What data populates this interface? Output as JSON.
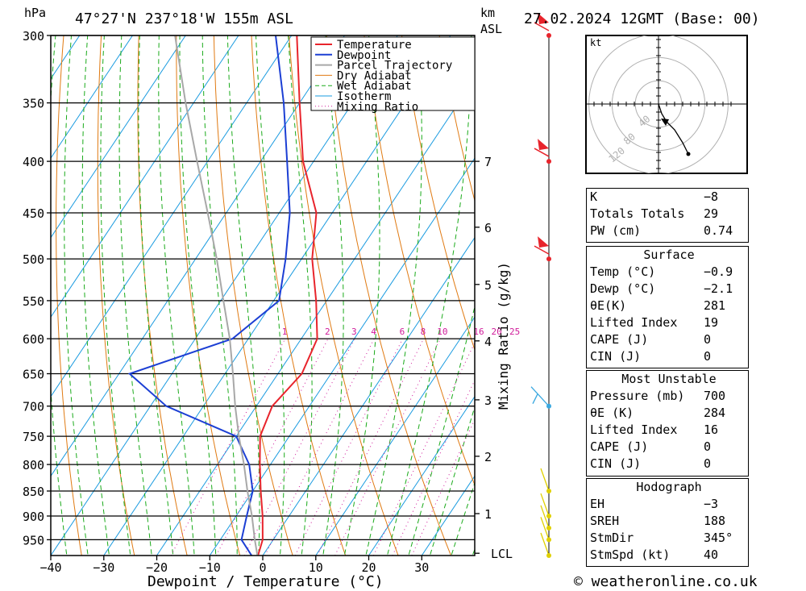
{
  "header": {
    "units_left": "hPa",
    "location": "47°27'N  237°18'W  155m  ASL",
    "units_km": "km",
    "units_asl": "ASL",
    "datetime": "27.02.2024  12GMT  (Base: 00)"
  },
  "chart_data": {
    "type": "line",
    "title": "47°27'N  237°18'W  155m  ASL",
    "xlabel": "Dewpoint / Temperature (°C)",
    "ylabel": "hPa",
    "y_scale": "log-pressure",
    "ylim": [
      985,
      300
    ],
    "xlim": [
      -40,
      40
    ],
    "skew": "isotherms skewed to the right",
    "x_ticks": [
      "−40",
      "−30",
      "−20",
      "−10",
      "0",
      "10",
      "20",
      "30"
    ],
    "x_tick_values": [
      -40,
      -30,
      -20,
      -10,
      0,
      10,
      20,
      30
    ],
    "pressure_ticks": [
      300,
      350,
      400,
      450,
      500,
      550,
      600,
      650,
      700,
      750,
      800,
      850,
      900,
      950
    ],
    "km_ticks": [
      {
        "label": "7",
        "p": 400
      },
      {
        "label": "6",
        "p": 465
      },
      {
        "label": "5",
        "p": 530
      },
      {
        "label": "4",
        "p": 603
      },
      {
        "label": "3",
        "p": 690
      },
      {
        "label": "2",
        "p": 785
      },
      {
        "label": "1",
        "p": 895
      },
      {
        "label": "LCL",
        "p": 980
      }
    ],
    "mixing_ratio_label": "Mixing Ratio (g/kg)",
    "mixing_ratio_values": [
      "1",
      "2",
      "3",
      "4",
      "6",
      "8",
      "10",
      "16",
      "20",
      "25"
    ],
    "mixing_ratio_numbers": [
      1,
      2,
      3,
      4,
      6,
      8,
      10,
      16,
      20,
      25
    ],
    "grid": true,
    "legend_position": "top-right",
    "legend": [
      "Temperature",
      "Dewpoint",
      "Parcel Trajectory",
      "Dry Adiabat",
      "Wet Adiabat",
      "Isotherm",
      "Mixing Ratio"
    ],
    "series": [
      {
        "name": "Temperature",
        "color": "#e8242c",
        "points": [
          [
            985,
            -0.9
          ],
          [
            950,
            -2
          ],
          [
            900,
            -5
          ],
          [
            850,
            -8.5
          ],
          [
            800,
            -12
          ],
          [
            750,
            -15.5
          ],
          [
            700,
            -17
          ],
          [
            650,
            -15.5
          ],
          [
            600,
            -17
          ],
          [
            550,
            -22
          ],
          [
            500,
            -28
          ],
          [
            450,
            -33
          ],
          [
            400,
            -42
          ],
          [
            350,
            -50
          ],
          [
            300,
            -59
          ]
        ]
      },
      {
        "name": "Dewpoint",
        "color": "#1c3fd4",
        "points": [
          [
            985,
            -2.1
          ],
          [
            950,
            -6
          ],
          [
            900,
            -8
          ],
          [
            850,
            -10
          ],
          [
            800,
            -14
          ],
          [
            750,
            -20
          ],
          [
            700,
            -37
          ],
          [
            650,
            -48
          ],
          [
            600,
            -33
          ],
          [
            550,
            -29
          ],
          [
            500,
            -33
          ],
          [
            450,
            -38
          ],
          [
            400,
            -45
          ],
          [
            350,
            -53
          ],
          [
            300,
            -63
          ]
        ]
      },
      {
        "name": "Parcel Trajectory",
        "color": "#a8a8a8",
        "points": [
          [
            985,
            -1
          ],
          [
            950,
            -3.5
          ],
          [
            900,
            -7
          ],
          [
            850,
            -11
          ],
          [
            800,
            -15
          ],
          [
            750,
            -19.5
          ],
          [
            700,
            -24
          ],
          [
            650,
            -28.5
          ],
          [
            600,
            -33.5
          ],
          [
            550,
            -39.5
          ],
          [
            500,
            -46
          ],
          [
            450,
            -53.5
          ],
          [
            400,
            -62
          ],
          [
            350,
            -71.5
          ],
          [
            300,
            -82
          ]
        ]
      }
    ],
    "wind_barbs": [
      {
        "p": 300,
        "color": "#e8242c"
      },
      {
        "p": 400,
        "color": "#e8242c"
      },
      {
        "p": 500,
        "color": "#e8242c"
      },
      {
        "p": 700,
        "color": "#3aa8e0"
      },
      {
        "p": 850,
        "color": "#e0d000"
      },
      {
        "p": 900,
        "color": "#e0d000"
      },
      {
        "p": 925,
        "color": "#e0d000"
      },
      {
        "p": 950,
        "color": "#e0d000"
      },
      {
        "p": 985,
        "color": "#e0d000"
      }
    ],
    "hodograph": {
      "unit_label": "kt",
      "rings": [
        "40",
        "80",
        "120"
      ],
      "ring_values": [
        40,
        80,
        120
      ]
    }
  },
  "stats_top": [
    {
      "label": "K",
      "value": "−8"
    },
    {
      "label": "Totals Totals",
      "value": "29"
    },
    {
      "label": "PW (cm)",
      "value": "0.74"
    }
  ],
  "surface": {
    "title": "Surface",
    "rows": [
      {
        "label": "Temp (°C)",
        "value": "−0.9"
      },
      {
        "label": "Dewp (°C)",
        "value": "−2.1"
      },
      {
        "label": "θE(K)",
        "value": "281"
      },
      {
        "label": "Lifted Index",
        "value": "19"
      },
      {
        "label": "CAPE (J)",
        "value": "0"
      },
      {
        "label": "CIN (J)",
        "value": "0"
      }
    ]
  },
  "most_unstable": {
    "title": "Most Unstable",
    "rows": [
      {
        "label": "Pressure (mb)",
        "value": "700"
      },
      {
        "label": "θE (K)",
        "value": "284"
      },
      {
        "label": "Lifted Index",
        "value": "16"
      },
      {
        "label": "CAPE (J)",
        "value": "0"
      },
      {
        "label": "CIN (J)",
        "value": "0"
      }
    ]
  },
  "hodograph_stats": {
    "title": "Hodograph",
    "rows": [
      {
        "label": "EH",
        "value": "−3"
      },
      {
        "label": "SREH",
        "value": "188"
      },
      {
        "label": "StmDir",
        "value": "345°"
      },
      {
        "label": "StmSpd (kt)",
        "value": "40"
      }
    ]
  },
  "footer": {
    "copyright": "© weatheronline.co.uk"
  },
  "colors": {
    "temperature": "#e8242c",
    "dewpoint": "#1c3fd4",
    "parcel": "#a8a8a8",
    "dry_adiabat": "#e07a12",
    "wet_adiabat": "#1aaa1a",
    "isotherm": "#1a9be0",
    "mixing_ratio": "#d01a9a"
  }
}
